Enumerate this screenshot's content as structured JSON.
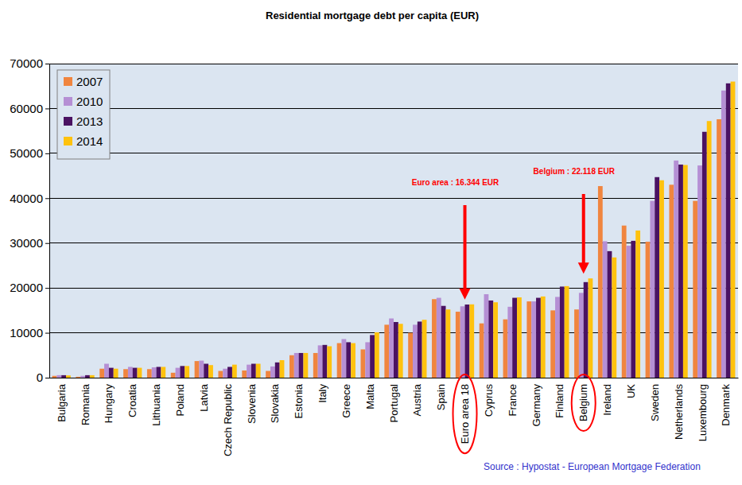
{
  "chart_data": {
    "type": "bar",
    "title": "Residential mortgage debt per capita  (EUR)",
    "categories": [
      "Bulgaria",
      "Romania",
      "Hungary",
      "Croatia",
      "Lithuania",
      "Poland",
      "Latvia",
      "Czech Republic",
      "Slovenia",
      "Slovakia",
      "Estonia",
      "Italy",
      "Greece",
      "Malta",
      "Portugal",
      "Austria",
      "Spain",
      "Euro area 18",
      "Cyprus",
      "France",
      "Germany",
      "Finland",
      "Belgium",
      "Ireland",
      "UK",
      "Sweden",
      "Netherlands",
      "Luxembourg",
      "Denmark"
    ],
    "series": [
      {
        "name": "2007",
        "color": "#f0853f",
        "values": [
          400,
          200,
          2000,
          1900,
          1900,
          1100,
          3700,
          1500,
          1600,
          1500,
          5000,
          5500,
          7700,
          6300,
          11800,
          10000,
          17500,
          14700,
          12100,
          13000,
          17000,
          15000,
          15200,
          42700,
          33900,
          30300,
          43000,
          39400,
          57600
        ]
      },
      {
        "name": "2010",
        "color": "#b58fd4",
        "values": [
          550,
          400,
          3100,
          2400,
          2300,
          2200,
          3800,
          2000,
          2900,
          2500,
          5500,
          7200,
          8600,
          7900,
          13200,
          11800,
          17800,
          15900,
          18600,
          15800,
          17000,
          18000,
          18900,
          30400,
          29400,
          39400,
          48400,
          47300,
          64000
        ]
      },
      {
        "name": "2013",
        "color": "#4a1262",
        "values": [
          550,
          550,
          2200,
          2200,
          2400,
          2600,
          3100,
          2400,
          3100,
          3400,
          5500,
          7300,
          7900,
          9500,
          12400,
          12500,
          16000,
          16300,
          17200,
          17800,
          17800,
          20300,
          21300,
          28200,
          30500,
          44700,
          47500,
          54800,
          65600
        ]
      },
      {
        "name": "2014",
        "color": "#ffc20e",
        "values": [
          500,
          550,
          2000,
          2200,
          2400,
          2600,
          2800,
          2900,
          3100,
          3900,
          5500,
          7000,
          7700,
          10100,
          12000,
          12900,
          15200,
          16344,
          16800,
          17900,
          18100,
          20400,
          22118,
          26800,
          32800,
          44000,
          47400,
          57200,
          66000
        ]
      }
    ],
    "ylim": [
      0,
      70000
    ],
    "yticks": [
      0,
      10000,
      20000,
      30000,
      40000,
      50000,
      60000,
      70000
    ],
    "grid": true,
    "legend": "upper left",
    "annotations": [
      {
        "text": "Euro area : 16.344 EUR",
        "category": "Euro area 18"
      },
      {
        "text": "Belgium : 22.118 EUR",
        "category": "Belgium"
      }
    ],
    "source": "Source : Hypostat - European Mortgage Federation"
  }
}
